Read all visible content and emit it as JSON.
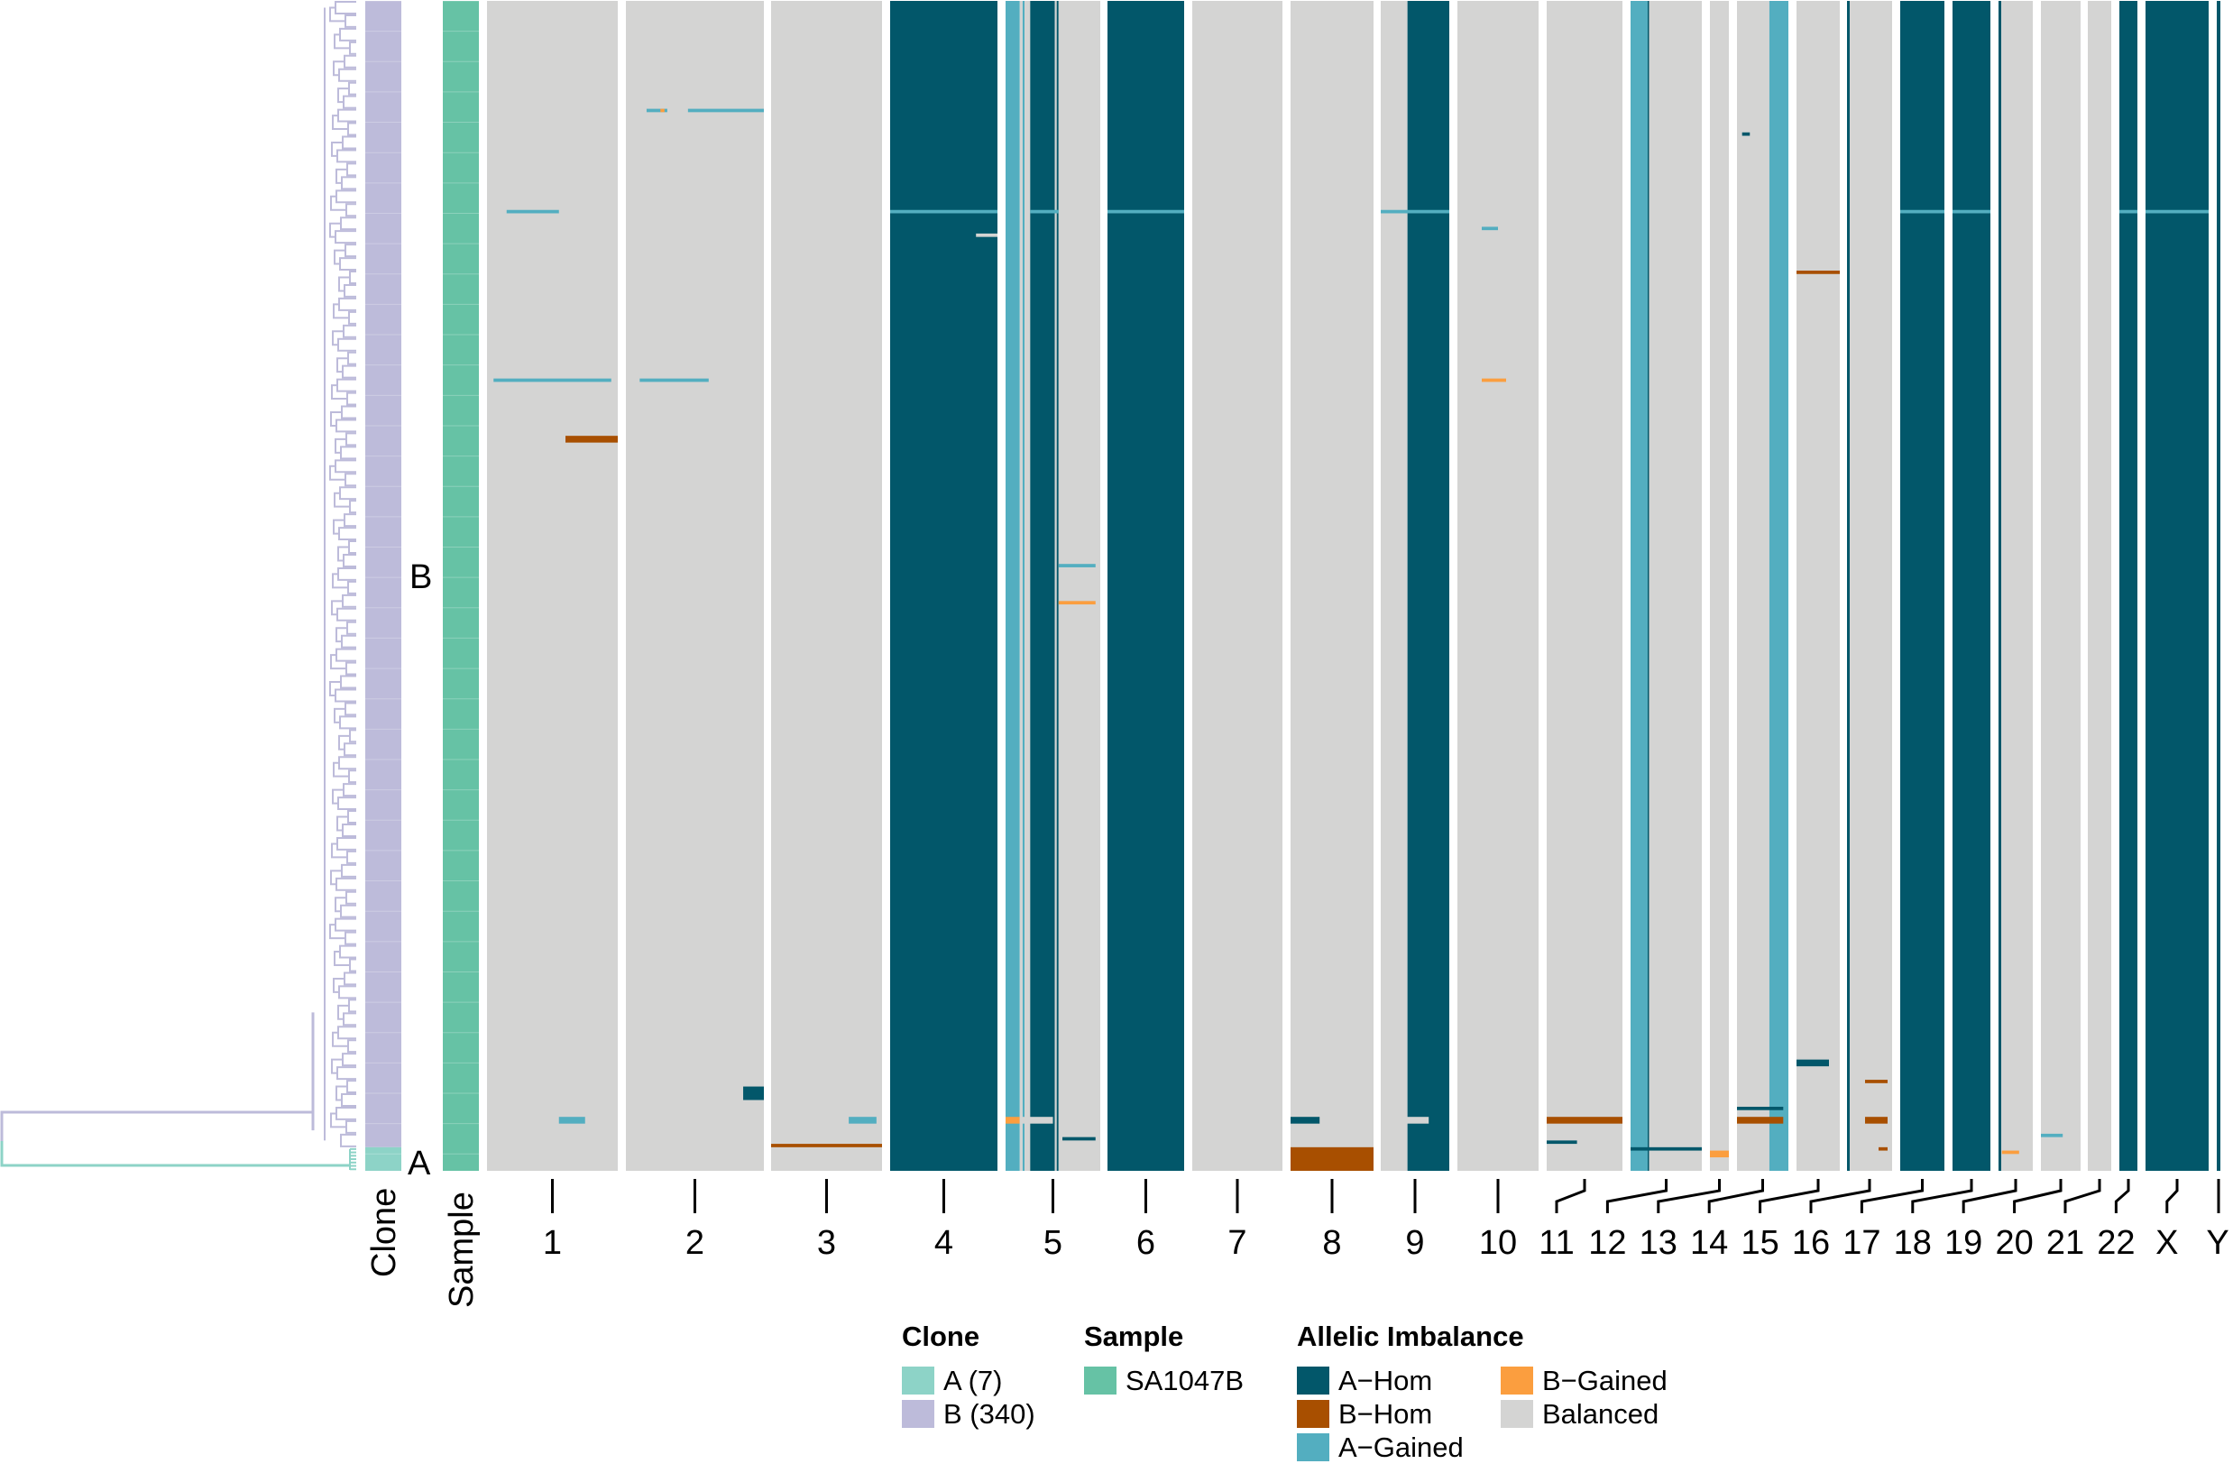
{
  "chart_data": {
    "type": "heatmap",
    "title": "",
    "xlabel": "",
    "ylabel": "",
    "n_cells": 347,
    "clones": [
      {
        "name": "B",
        "count": 340,
        "label": "B",
        "color": "#BDBBDA"
      },
      {
        "name": "A",
        "count": 7,
        "label": "A",
        "color": "#8DD3C7"
      }
    ],
    "sample": {
      "name": "SA1047B",
      "color": "#66C2A5"
    },
    "annotation_columns": [
      "Clone",
      "Sample"
    ],
    "states": {
      "A-Hom": "#02576A",
      "B-Hom": "#A84F00",
      "A-Gained": "#53AEC0",
      "B-Gained": "#FB9E3F",
      "Balanced": "#D4D4D3"
    },
    "chromosomes": [
      "1",
      "2",
      "3",
      "4",
      "5",
      "6",
      "7",
      "8",
      "9",
      "10",
      "11",
      "12",
      "13",
      "14",
      "15",
      "16",
      "17",
      "18",
      "19",
      "20",
      "21",
      "22",
      "X",
      "Y"
    ],
    "chromosome_base": {
      "1": [
        [
          "Balanced",
          0,
          1
        ]
      ],
      "2": [
        [
          "Balanced",
          0,
          1
        ]
      ],
      "3": [
        [
          "Balanced",
          0,
          1
        ]
      ],
      "4": [
        [
          "A-Hom",
          0,
          1
        ]
      ],
      "5": [
        [
          "A-Gained",
          0,
          0.15
        ],
        [
          "Balanced",
          0.15,
          0.18
        ],
        [
          "A-Gained",
          0.18,
          0.2
        ],
        [
          "Balanced",
          0.2,
          0.26
        ],
        [
          "A-Hom",
          0.26,
          0.52
        ],
        [
          "Balanced",
          0.52,
          0.54
        ],
        [
          "A-Hom",
          0.54,
          0.56
        ],
        [
          "Balanced",
          0.56,
          1
        ]
      ],
      "6": [
        [
          "A-Hom",
          0,
          1
        ]
      ],
      "7": [
        [
          "Balanced",
          0,
          1
        ]
      ],
      "8": [
        [
          "Balanced",
          0,
          1
        ]
      ],
      "9": [
        [
          "Balanced",
          0,
          0.39
        ],
        [
          "A-Hom",
          0.39,
          1
        ]
      ],
      "10": [
        [
          "Balanced",
          0,
          1
        ]
      ],
      "11": [
        [
          "Balanced",
          0,
          1
        ]
      ],
      "12": [
        [
          "A-Gained",
          0,
          0.24
        ],
        [
          "A-Hom",
          0.24,
          0.26
        ],
        [
          "Balanced",
          0.26,
          1
        ]
      ],
      "13": [
        [
          "Balanced",
          0,
          1
        ]
      ],
      "14": [
        [
          "Balanced",
          0,
          0.63
        ],
        [
          "A-Gained",
          0.63,
          1
        ]
      ],
      "15": [
        [
          "Balanced",
          0,
          1
        ]
      ],
      "16": [
        [
          "A-Hom",
          0,
          0.06
        ],
        [
          "Balanced",
          0.06,
          1
        ]
      ],
      "17": [
        [
          "A-Hom",
          0,
          1
        ]
      ],
      "18": [
        [
          "A-Hom",
          0,
          1
        ]
      ],
      "19": [
        [
          "A-Hom",
          0,
          0.08
        ],
        [
          "Balanced",
          0.08,
          1
        ]
      ],
      "20": [
        [
          "Balanced",
          0,
          1
        ]
      ],
      "21": [
        [
          "Balanced",
          0,
          1
        ]
      ],
      "22": [
        [
          "A-Hom",
          0,
          1
        ]
      ],
      "X": [
        [
          "A-Hom",
          0,
          1
        ]
      ],
      "Y": [
        [
          "A-Hom",
          0,
          1
        ]
      ]
    },
    "segments": [
      {
        "chr": "4",
        "state": "A-Gained",
        "cells": [
          62,
          63
        ],
        "x": [
          0,
          1
        ]
      },
      {
        "chr": "6",
        "state": "A-Gained",
        "cells": [
          62,
          63
        ],
        "x": [
          0,
          1
        ]
      },
      {
        "chr": "9",
        "state": "A-Gained",
        "cells": [
          62,
          63
        ],
        "x": [
          0,
          1
        ]
      },
      {
        "chr": "17",
        "state": "A-Gained",
        "cells": [
          62,
          63
        ],
        "x": [
          0,
          1
        ]
      },
      {
        "chr": "18",
        "state": "A-Gained",
        "cells": [
          62,
          63
        ],
        "x": [
          0,
          1
        ]
      },
      {
        "chr": "22",
        "state": "A-Gained",
        "cells": [
          62,
          63
        ],
        "x": [
          0,
          1
        ]
      },
      {
        "chr": "X",
        "state": "A-Gained",
        "cells": [
          62,
          63
        ],
        "x": [
          0,
          1
        ]
      },
      {
        "chr": "5",
        "state": "A-Gained",
        "cells": [
          62,
          63
        ],
        "x": [
          0.26,
          0.56
        ]
      },
      {
        "chr": "4",
        "state": "Balanced",
        "cells": [
          69,
          70
        ],
        "x": [
          0.8,
          1
        ]
      },
      {
        "chr": "1",
        "state": "A-Gained",
        "cells": [
          62,
          63
        ],
        "x": [
          0.15,
          0.55
        ]
      },
      {
        "chr": "1",
        "state": "A-Gained",
        "cells": [
          112,
          113
        ],
        "x": [
          0.05,
          0.95
        ]
      },
      {
        "chr": "2",
        "state": "A-Gained",
        "cells": [
          112,
          113
        ],
        "x": [
          0.1,
          0.6
        ]
      },
      {
        "chr": "1",
        "state": "B-Hom",
        "cells": [
          129,
          131
        ],
        "x": [
          0.6,
          1
        ]
      },
      {
        "chr": "2",
        "state": "A-Gained",
        "cells": [
          32,
          33
        ],
        "x": [
          0.15,
          0.3
        ]
      },
      {
        "chr": "2",
        "state": "A-Gained",
        "cells": [
          32,
          33
        ],
        "x": [
          0.45,
          1
        ]
      },
      {
        "chr": "2",
        "state": "B-Gained",
        "cells": [
          32,
          33
        ],
        "x": [
          0.25,
          0.28
        ]
      },
      {
        "chr": "15",
        "state": "B-Hom",
        "cells": [
          80,
          81
        ],
        "x": [
          0,
          1
        ]
      },
      {
        "chr": "10",
        "state": "A-Gained",
        "cells": [
          67,
          68
        ],
        "x": [
          0.3,
          0.5
        ]
      },
      {
        "chr": "10",
        "state": "B-Gained",
        "cells": [
          112,
          113
        ],
        "x": [
          0.3,
          0.6
        ]
      },
      {
        "chr": "14",
        "state": "A-Hom",
        "cells": [
          39,
          40
        ],
        "x": [
          0.1,
          0.25
        ]
      },
      {
        "chr": "5",
        "state": "A-Gained",
        "cells": [
          167,
          168
        ],
        "x": [
          0.56,
          0.95
        ]
      },
      {
        "chr": "5",
        "state": "B-Gained",
        "cells": [
          178,
          179
        ],
        "x": [
          0.56,
          0.95
        ]
      },
      {
        "chr": "8",
        "state": "A-Hom",
        "cells": [
          331,
          333
        ],
        "x": [
          0,
          0.35
        ]
      },
      {
        "chr": "8",
        "state": "B-Hom",
        "cells": [
          340,
          347
        ],
        "x": [
          0,
          1
        ]
      },
      {
        "chr": "9",
        "state": "Balanced",
        "cells": [
          331,
          333
        ],
        "x": [
          0,
          0.7
        ]
      },
      {
        "chr": "3",
        "state": "B-Hom",
        "cells": [
          339,
          340
        ],
        "x": [
          0,
          1
        ]
      },
      {
        "chr": "3",
        "state": "A-Gained",
        "cells": [
          331,
          333
        ],
        "x": [
          0.7,
          0.95
        ]
      },
      {
        "chr": "1",
        "state": "A-Gained",
        "cells": [
          331,
          333
        ],
        "x": [
          0.55,
          0.75
        ]
      },
      {
        "chr": "2",
        "state": "A-Hom",
        "cells": [
          322,
          326
        ],
        "x": [
          0.85,
          1
        ]
      },
      {
        "chr": "5",
        "state": "B-Gained",
        "cells": [
          331,
          333
        ],
        "x": [
          0,
          0.15
        ]
      },
      {
        "chr": "5",
        "state": "Balanced",
        "cells": [
          331,
          333
        ],
        "x": [
          0.15,
          0.5
        ]
      },
      {
        "chr": "5",
        "state": "A-Hom",
        "cells": [
          337,
          338
        ],
        "x": [
          0.6,
          0.95
        ]
      },
      {
        "chr": "11",
        "state": "B-Hom",
        "cells": [
          331,
          333
        ],
        "x": [
          0,
          1
        ]
      },
      {
        "chr": "11",
        "state": "A-Hom",
        "cells": [
          338,
          339
        ],
        "x": [
          0,
          0.4
        ]
      },
      {
        "chr": "12",
        "state": "A-Hom",
        "cells": [
          340,
          341
        ],
        "x": [
          0,
          1
        ]
      },
      {
        "chr": "13",
        "state": "B-Gained",
        "cells": [
          341,
          343
        ],
        "x": [
          0,
          1
        ]
      },
      {
        "chr": "14",
        "state": "B-Hom",
        "cells": [
          331,
          333
        ],
        "x": [
          0,
          0.9
        ]
      },
      {
        "chr": "14",
        "state": "A-Hom",
        "cells": [
          328,
          329
        ],
        "x": [
          0,
          0.9
        ]
      },
      {
        "chr": "15",
        "state": "A-Hom",
        "cells": [
          314,
          316
        ],
        "x": [
          0,
          0.75
        ]
      },
      {
        "chr": "16",
        "state": "B-Hom",
        "cells": [
          320,
          321
        ],
        "x": [
          0.4,
          0.9
        ]
      },
      {
        "chr": "16",
        "state": "B-Hom",
        "cells": [
          331,
          333
        ],
        "x": [
          0.4,
          0.9
        ]
      },
      {
        "chr": "16",
        "state": "B-Hom",
        "cells": [
          340,
          341
        ],
        "x": [
          0.7,
          0.9
        ]
      },
      {
        "chr": "19",
        "state": "B-Gained",
        "cells": [
          341,
          342
        ],
        "x": [
          0.1,
          0.6
        ]
      },
      {
        "chr": "20",
        "state": "A-Gained",
        "cells": [
          336,
          337
        ],
        "x": [
          0,
          0.55
        ]
      }
    ],
    "tick_labels": [
      "1",
      "2",
      "3",
      "4",
      "5",
      "6",
      "7",
      "8",
      "9",
      "10",
      "11",
      "12",
      "13",
      "14",
      "15",
      "16",
      "17",
      "18",
      "19",
      "20",
      "21",
      "22",
      "X",
      "Y"
    ],
    "row_labels": [
      "B",
      "A"
    ],
    "axis_titles": {
      "clone": "Clone",
      "sample": "Sample"
    },
    "legend": [
      {
        "title": "Clone",
        "items": [
          {
            "label": "A (7)",
            "color": "#8DD3C7"
          },
          {
            "label": "B (340)",
            "color": "#BDBBDA"
          }
        ]
      },
      {
        "title": "Sample",
        "items": [
          {
            "label": "SA1047B",
            "color": "#66C2A5"
          }
        ]
      },
      {
        "title": "Allelic Imbalance",
        "items": [
          {
            "label": "A−Hom",
            "color": "#02576A"
          },
          {
            "label": "B−Hom",
            "color": "#A84F00"
          },
          {
            "label": "A−Gained",
            "color": "#53AEC0"
          },
          {
            "label": "B−Gained",
            "color": "#FB9E3F"
          },
          {
            "label": "Balanced",
            "color": "#D4D4D3"
          }
        ]
      }
    ],
    "legend_position": "bottom"
  }
}
